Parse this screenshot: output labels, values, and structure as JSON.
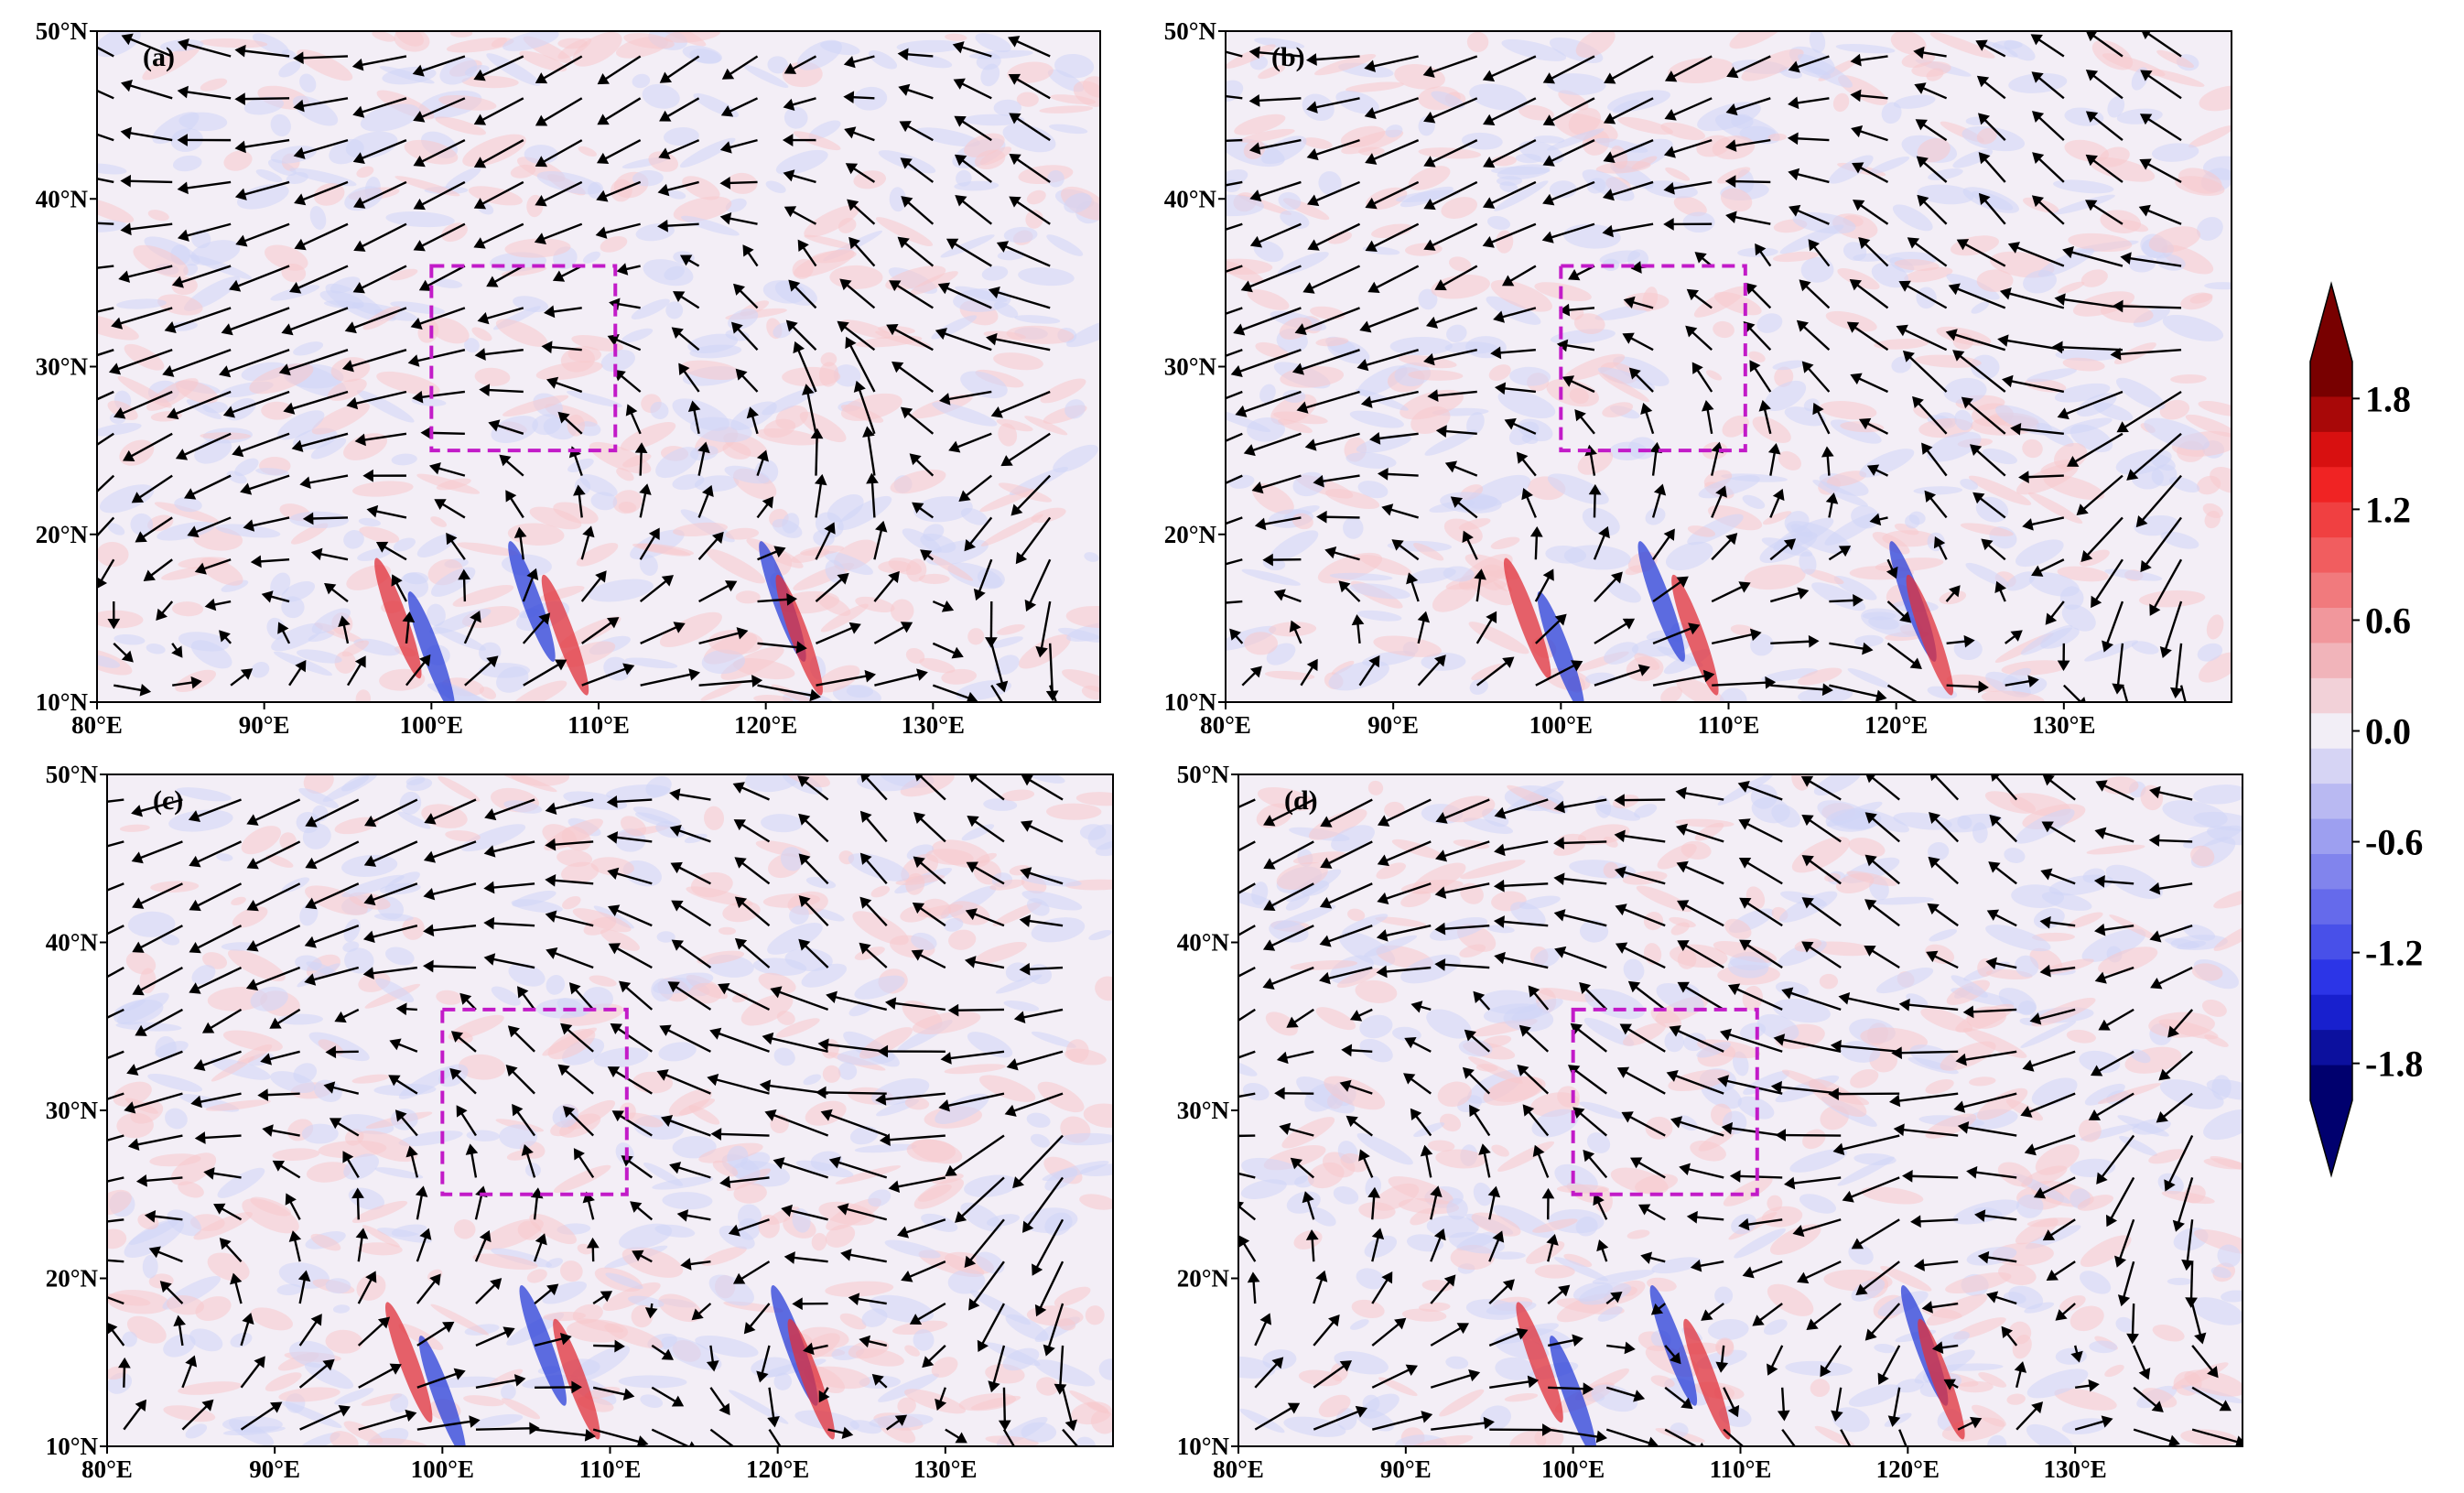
{
  "panels": [
    {
      "label": "(a)",
      "xlim": [
        80,
        140
      ],
      "ylim": [
        10,
        50
      ],
      "xticks": [
        {
          "value": 80,
          "label": "80°E"
        },
        {
          "value": 90,
          "label": "90°E"
        },
        {
          "value": 100,
          "label": "100°E"
        },
        {
          "value": 110,
          "label": "110°E"
        },
        {
          "value": 120,
          "label": "120°E"
        },
        {
          "value": 130,
          "label": "130°E"
        }
      ],
      "yticks": [
        {
          "value": 10,
          "label": "10°N"
        },
        {
          "value": 20,
          "label": "20°N"
        },
        {
          "value": 30,
          "label": "30°N"
        },
        {
          "value": 40,
          "label": "40°N"
        },
        {
          "value": 50,
          "label": "50°N"
        }
      ],
      "region": {
        "lon": [
          100,
          111
        ],
        "lat": [
          25,
          36
        ]
      }
    },
    {
      "label": "(b)",
      "xlim": [
        80,
        140
      ],
      "ylim": [
        10,
        50
      ],
      "xticks": [
        {
          "value": 80,
          "label": "80°E"
        },
        {
          "value": 90,
          "label": "90°E"
        },
        {
          "value": 100,
          "label": "100°E"
        },
        {
          "value": 110,
          "label": "110°E"
        },
        {
          "value": 120,
          "label": "120°E"
        },
        {
          "value": 130,
          "label": "130°E"
        }
      ],
      "yticks": [
        {
          "value": 10,
          "label": "10°N"
        },
        {
          "value": 20,
          "label": "20°N"
        },
        {
          "value": 30,
          "label": "30°N"
        },
        {
          "value": 40,
          "label": "40°N"
        },
        {
          "value": 50,
          "label": "50°N"
        }
      ],
      "region": {
        "lon": [
          100,
          111
        ],
        "lat": [
          25,
          36
        ]
      }
    },
    {
      "label": "(c)",
      "xlim": [
        80,
        140
      ],
      "ylim": [
        10,
        50
      ],
      "xticks": [
        {
          "value": 80,
          "label": "80°E"
        },
        {
          "value": 90,
          "label": "90°E"
        },
        {
          "value": 100,
          "label": "100°E"
        },
        {
          "value": 110,
          "label": "110°E"
        },
        {
          "value": 120,
          "label": "120°E"
        },
        {
          "value": 130,
          "label": "130°E"
        }
      ],
      "yticks": [
        {
          "value": 10,
          "label": "10°N"
        },
        {
          "value": 20,
          "label": "20°N"
        },
        {
          "value": 30,
          "label": "30°N"
        },
        {
          "value": 40,
          "label": "40°N"
        },
        {
          "value": 50,
          "label": "50°N"
        }
      ],
      "region": {
        "lon": [
          100,
          111
        ],
        "lat": [
          25,
          36
        ]
      }
    },
    {
      "label": "(d)",
      "xlim": [
        80,
        140
      ],
      "ylim": [
        10,
        50
      ],
      "xticks": [
        {
          "value": 80,
          "label": "80°E"
        },
        {
          "value": 90,
          "label": "90°E"
        },
        {
          "value": 100,
          "label": "100°E"
        },
        {
          "value": 110,
          "label": "110°E"
        },
        {
          "value": 120,
          "label": "120°E"
        },
        {
          "value": 130,
          "label": "130°E"
        }
      ],
      "yticks": [
        {
          "value": 10,
          "label": "10°N"
        },
        {
          "value": 20,
          "label": "20°N"
        },
        {
          "value": 30,
          "label": "30°N"
        },
        {
          "value": 40,
          "label": "40°N"
        },
        {
          "value": 50,
          "label": "50°N"
        }
      ],
      "region": {
        "lon": [
          100,
          111
        ],
        "lat": [
          25,
          36
        ]
      }
    }
  ],
  "colorbar": {
    "lim": [
      -2.0,
      2.0
    ],
    "ticks": [
      1.8,
      1.2,
      0.6,
      {
        "value": 0,
        "label": "0.0"
      },
      -0.6,
      -1.2,
      -1.8
    ]
  }
}
